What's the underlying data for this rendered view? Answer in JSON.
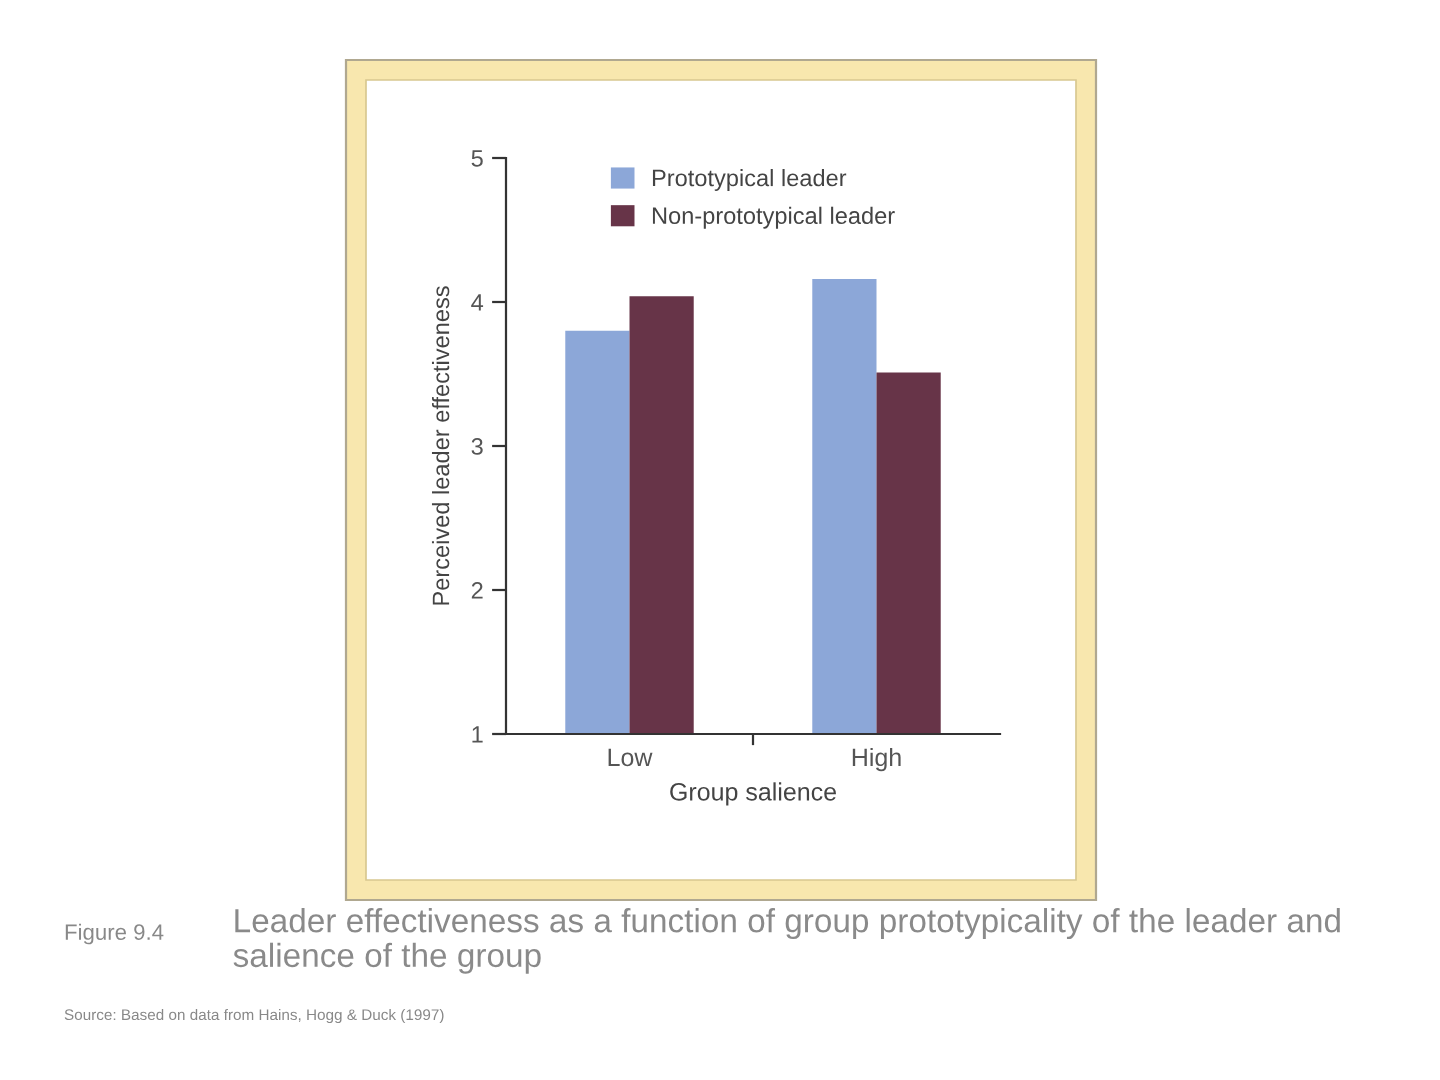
{
  "chart_data": {
    "type": "bar",
    "title": "Leader effectiveness as a function of group prototypicality of the leader and salience of the group",
    "categories": [
      "Low",
      "High"
    ],
    "series": [
      {
        "name": "Prototypical leader",
        "color": "#8ca7d8",
        "values": [
          3.8,
          4.16
        ]
      },
      {
        "name": "Non-prototypical leader",
        "color": "#673448",
        "values": [
          4.04,
          3.51
        ]
      }
    ],
    "xlabel": "Group salience",
    "ylabel": "Perceived leader effectiveness",
    "ylim": [
      1,
      5
    ],
    "yticks": [
      1,
      2,
      3,
      4,
      5
    ],
    "legend": "top",
    "grid": false,
    "annotations": [
      "Figure 9.4",
      "Source: Based on data from Hains, Hogg & Duck (1997)"
    ]
  }
}
